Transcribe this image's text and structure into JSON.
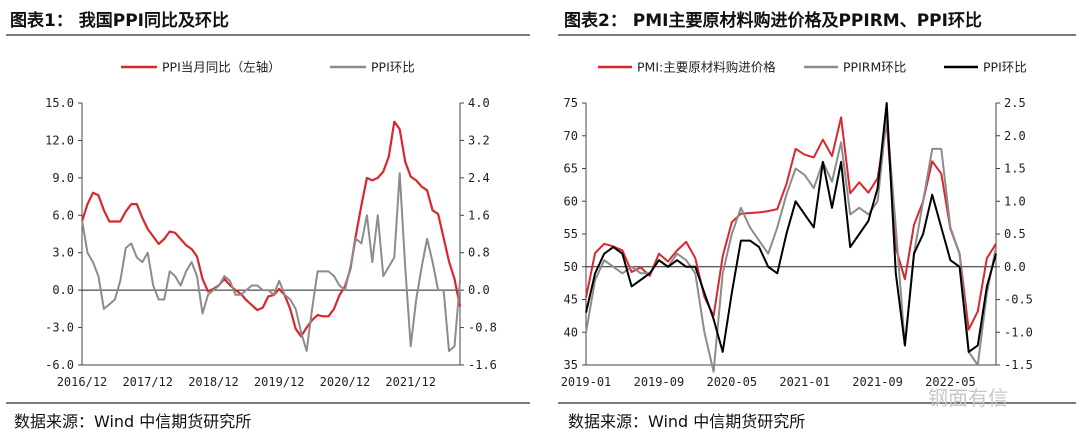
{
  "colors": {
    "red": "#d9272e",
    "gray": "#8c8c8c",
    "black": "#000000"
  },
  "watermark": "钢面有信",
  "panels": [
    {
      "title": "图表1：  我国PPI同比及环比",
      "source": "数据来源：Wind 中信期货研究所"
    },
    {
      "title": "图表2：  PMI主要原材料购进价格及PPIRM、PPI环比",
      "source": "数据来源：Wind 中信期货研究所"
    }
  ],
  "chart_data": [
    {
      "type": "line",
      "legend_position": "top",
      "x_tick_labels": [
        "2016/12",
        "2017/12",
        "2018/12",
        "2019/12",
        "2020/12",
        "2021/12"
      ],
      "y_left": {
        "ylim": [
          -6.0,
          15.0
        ],
        "ticks": [
          "15.0",
          "12.0",
          "9.0",
          "6.0",
          "3.0",
          "0.0",
          "-3.0",
          "-6.0"
        ]
      },
      "y_right": {
        "ylim": [
          -1.6,
          4.0
        ],
        "ticks": [
          "4.0",
          "3.2",
          "2.4",
          "1.6",
          "0.8",
          "0.0",
          "-0.8",
          "-1.6"
        ]
      },
      "series": [
        {
          "name": "PPI当月同比（左轴）",
          "color_key": "red",
          "axis": "left",
          "values": [
            5.5,
            6.9,
            7.8,
            7.6,
            6.4,
            5.5,
            5.5,
            5.5,
            6.3,
            6.9,
            6.9,
            5.8,
            4.9,
            4.3,
            3.7,
            4.1,
            4.7,
            4.6,
            4.1,
            3.6,
            3.3,
            2.7,
            0.9,
            -0.1,
            0.1,
            0.4,
            0.9,
            0.4,
            0.0,
            -0.3,
            -0.8,
            -1.2,
            -1.6,
            -1.4,
            -0.5,
            -0.4,
            0.1,
            -0.4,
            -1.5,
            -3.1,
            -3.7,
            -3.0,
            -2.4,
            -2.0,
            -2.1,
            -2.1,
            -1.5,
            -0.4,
            0.3,
            1.7,
            4.4,
            6.8,
            9.0,
            8.8,
            9.0,
            9.5,
            10.7,
            13.5,
            12.9,
            10.3,
            9.1,
            8.8,
            8.3,
            8.0,
            6.4,
            6.1,
            4.2,
            2.3,
            0.9,
            -1.3
          ]
        },
        {
          "name": "PPI环比",
          "color_key": "gray",
          "axis": "right",
          "values": [
            1.5,
            0.8,
            0.6,
            0.3,
            -0.4,
            -0.3,
            -0.2,
            0.2,
            0.9,
            1.0,
            0.7,
            0.6,
            0.8,
            0.1,
            -0.2,
            -0.2,
            0.4,
            0.3,
            0.1,
            0.4,
            0.6,
            0.3,
            -0.5,
            -0.1,
            0.0,
            0.1,
            0.3,
            0.2,
            -0.1,
            -0.1,
            0.0,
            0.1,
            0.1,
            0.0,
            0.0,
            -0.1,
            0.2,
            -0.1,
            -0.2,
            -0.4,
            -0.9,
            -1.3,
            -0.4,
            0.4,
            0.4,
            0.4,
            0.3,
            0.1,
            0.0,
            0.5,
            1.1,
            1.0,
            1.6,
            0.6,
            1.6,
            0.3,
            0.5,
            0.7,
            2.5,
            0.5,
            -1.2,
            -0.2,
            0.5,
            1.1,
            0.6,
            0.0,
            0.0,
            -1.3,
            -1.2,
            0.2
          ]
        }
      ]
    },
    {
      "type": "line",
      "legend_position": "top",
      "x_tick_labels": [
        "2019-01",
        "2019-09",
        "2020-05",
        "2021-01",
        "2021-09",
        "2022-05"
      ],
      "y_left": {
        "ylim": [
          35,
          75
        ],
        "ticks": [
          "75",
          "70",
          "65",
          "60",
          "55",
          "50",
          "45",
          "40",
          "35"
        ]
      },
      "y_right": {
        "ylim": [
          -1.5,
          2.5
        ],
        "ticks": [
          "2.5",
          "2.0",
          "1.5",
          "1.0",
          "0.5",
          "0.0",
          "-0.5",
          "-1.0",
          "-1.5"
        ]
      },
      "series": [
        {
          "name": "PMI:主要原材料购进价格",
          "color_key": "red",
          "axis": "left",
          "values": [
            45.3,
            52.1,
            53.5,
            53.1,
            52.5,
            49.2,
            49.9,
            48.6,
            52.0,
            50.8,
            52.5,
            53.8,
            51.3,
            45.4,
            42.5,
            51.6,
            56.8,
            58.1,
            58.2,
            58.3,
            58.5,
            58.8,
            62.6,
            68.0,
            67.1,
            66.7,
            69.4,
            66.9,
            72.8,
            61.2,
            62.9,
            61.3,
            63.5,
            72.1,
            52.9,
            48.1,
            56.4,
            60.0,
            66.1,
            64.2,
            55.8,
            52.0,
            40.4,
            43.2,
            51.3,
            53.5
          ]
        },
        {
          "name": "PPIRM环比",
          "color_key": "gray",
          "axis": "right",
          "values": [
            -1.0,
            -0.2,
            0.1,
            0.0,
            -0.1,
            0.0,
            -0.1,
            -0.1,
            0.1,
            0.0,
            0.2,
            0.1,
            -0.1,
            -1.0,
            -1.6,
            -0.1,
            0.5,
            0.9,
            0.6,
            0.4,
            0.2,
            0.6,
            1.1,
            1.5,
            1.4,
            1.2,
            1.6,
            1.3,
            1.9,
            0.8,
            0.9,
            0.8,
            1.0,
            2.3,
            0.6,
            -1.2,
            0.2,
            1.0,
            1.8,
            1.8,
            0.6,
            0.2,
            -1.3,
            -1.5,
            -0.4,
            0.3
          ]
        },
        {
          "name": "PPI环比",
          "color_key": "black",
          "axis": "right",
          "values": [
            -0.7,
            -0.1,
            0.2,
            0.3,
            0.2,
            -0.3,
            -0.2,
            -0.1,
            0.1,
            0.0,
            0.1,
            0.0,
            0.0,
            -0.4,
            -0.8,
            -1.3,
            -0.4,
            0.4,
            0.4,
            0.3,
            0.0,
            -0.1,
            0.5,
            1.0,
            0.8,
            0.6,
            1.6,
            0.9,
            1.6,
            0.3,
            0.5,
            0.7,
            1.2,
            2.5,
            -0.1,
            -1.2,
            0.2,
            0.5,
            1.1,
            0.6,
            0.1,
            0.0,
            -1.3,
            -1.2,
            -0.3,
            0.2
          ]
        }
      ]
    }
  ]
}
